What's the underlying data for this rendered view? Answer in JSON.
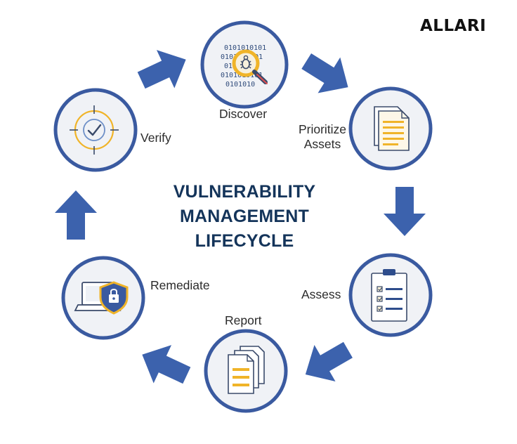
{
  "brand": {
    "logo_text": "ALLARI"
  },
  "title": {
    "line1": "VULNERABILITY",
    "line2": "MANAGEMENT",
    "line3": "LIFECYCLE"
  },
  "stages": {
    "discover": "Discover",
    "prioritize_line1": "Prioritize",
    "prioritize_line2": "Assets",
    "assess": "Assess",
    "report": "Report",
    "remediate": "Remediate",
    "verify": "Verify"
  },
  "binary_text": {
    "row1": "0101010101",
    "row2": "0101010101",
    "row3": "010101",
    "row4": "0101010101",
    "row5": "0101010"
  },
  "colors": {
    "arrow": "#3c62ad",
    "circle_ring": "#3a5aa0",
    "circle_fill": "#f0f2f6",
    "accent_gold": "#f0b429",
    "title": "#14345a"
  }
}
